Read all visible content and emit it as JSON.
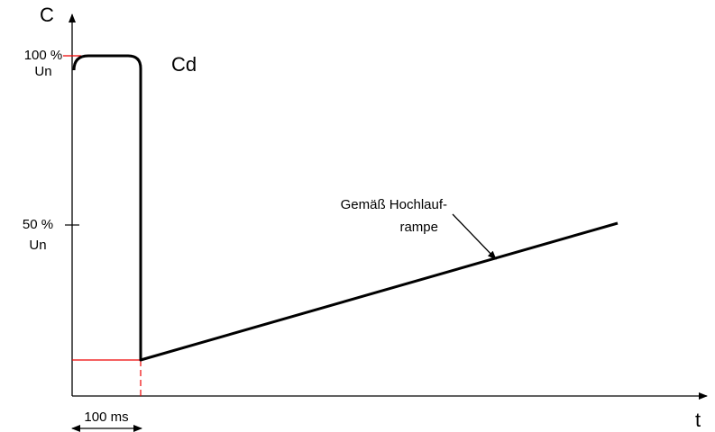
{
  "axes": {
    "y_label": "C",
    "x_label": "t"
  },
  "ticks": [
    {
      "label": "100 %",
      "unit": "Un"
    },
    {
      "label": "50 %",
      "unit": "Un"
    }
  ],
  "curve_label": "Cd",
  "annotation": [
    "Gemäß Hochlauf-",
    "rampe"
  ],
  "duration": "100 ms"
}
